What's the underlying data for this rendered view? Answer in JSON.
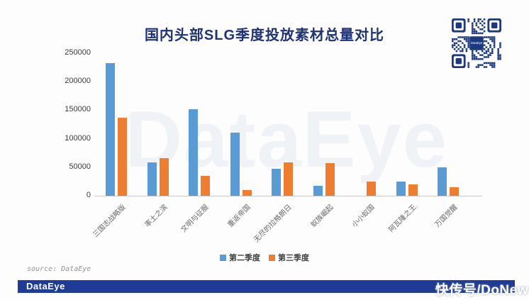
{
  "title": "国内头部SLG季度投放素材总量对比",
  "watermark_text": "DataEye",
  "source_note": "source: DataEye",
  "footer": {
    "brand": "DataEye",
    "publisher": "快传号/DoNew"
  },
  "qr": {
    "logo_text": "DataEye",
    "color": "#1d3a80"
  },
  "chart_data": {
    "type": "bar",
    "title": "国内头部SLG季度投放素材总量对比",
    "categories": [
      "三国志战略版",
      "率土之滨",
      "文明与征服",
      "重返帝国",
      "无尽的拉格朗日",
      "蚁族崛起",
      "小小蚁国",
      "阿瓦隆之王",
      "万国觉醒"
    ],
    "series": [
      {
        "name": "第二季度",
        "color": "#5B9BD5",
        "values": [
          232000,
          59000,
          152000,
          111000,
          47000,
          17000,
          0,
          25000,
          50000
        ]
      },
      {
        "name": "第三季度",
        "color": "#ED7D31",
        "values": [
          137000,
          66000,
          35000,
          10000,
          59000,
          57000,
          25000,
          20000,
          15000
        ]
      }
    ],
    "xlabel": "",
    "ylabel": "",
    "ylim": [
      0,
      250000
    ],
    "yticks": [
      0,
      50000,
      100000,
      150000,
      200000,
      250000
    ],
    "grid": false,
    "legend_position": "bottom"
  }
}
